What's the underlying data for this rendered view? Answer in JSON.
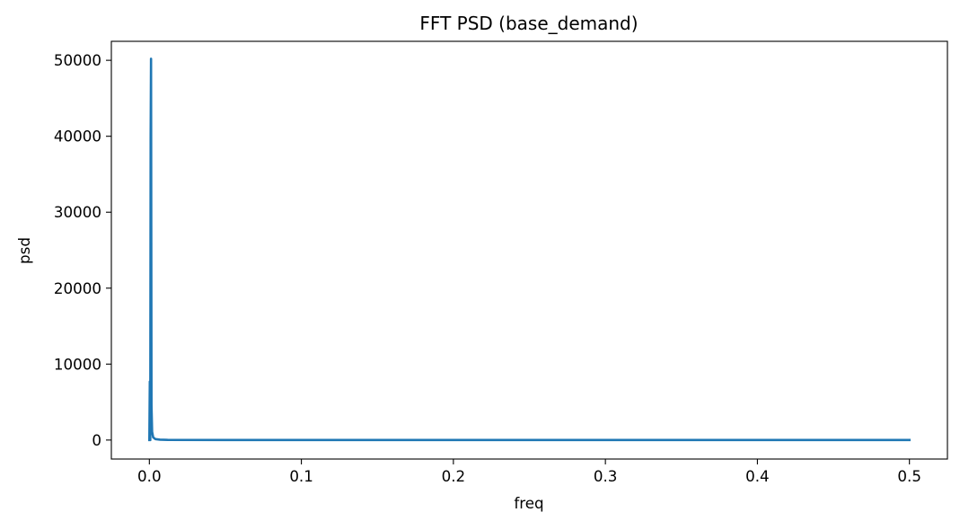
{
  "chart_data": {
    "type": "line",
    "title": "FFT PSD (base_demand)",
    "xlabel": "freq",
    "ylabel": "psd",
    "xlim": [
      -0.025,
      0.525
    ],
    "ylim": [
      -2500,
      52500
    ],
    "xticks": [
      0.0,
      0.1,
      0.2,
      0.3,
      0.4,
      0.5
    ],
    "xtick_labels": [
      "0.0",
      "0.1",
      "0.2",
      "0.3",
      "0.4",
      "0.5"
    ],
    "yticks": [
      0,
      10000,
      20000,
      30000,
      40000,
      50000
    ],
    "ytick_labels": [
      "0",
      "10000",
      "20000",
      "30000",
      "40000",
      "50000"
    ],
    "grid": false,
    "series": [
      {
        "color": "#1f77b4",
        "x": [
          0.0,
          0.0003,
          0.0006,
          0.00085,
          0.0011,
          0.0014,
          0.0018,
          0.0025,
          0.004,
          0.007,
          0.012,
          0.05,
          0.1,
          0.2,
          0.3,
          0.4,
          0.5
        ],
        "y": [
          0,
          7700,
          0,
          40000,
          50200,
          4500,
          1100,
          350,
          120,
          50,
          20,
          5,
          3,
          2,
          1,
          1,
          0
        ]
      }
    ]
  }
}
